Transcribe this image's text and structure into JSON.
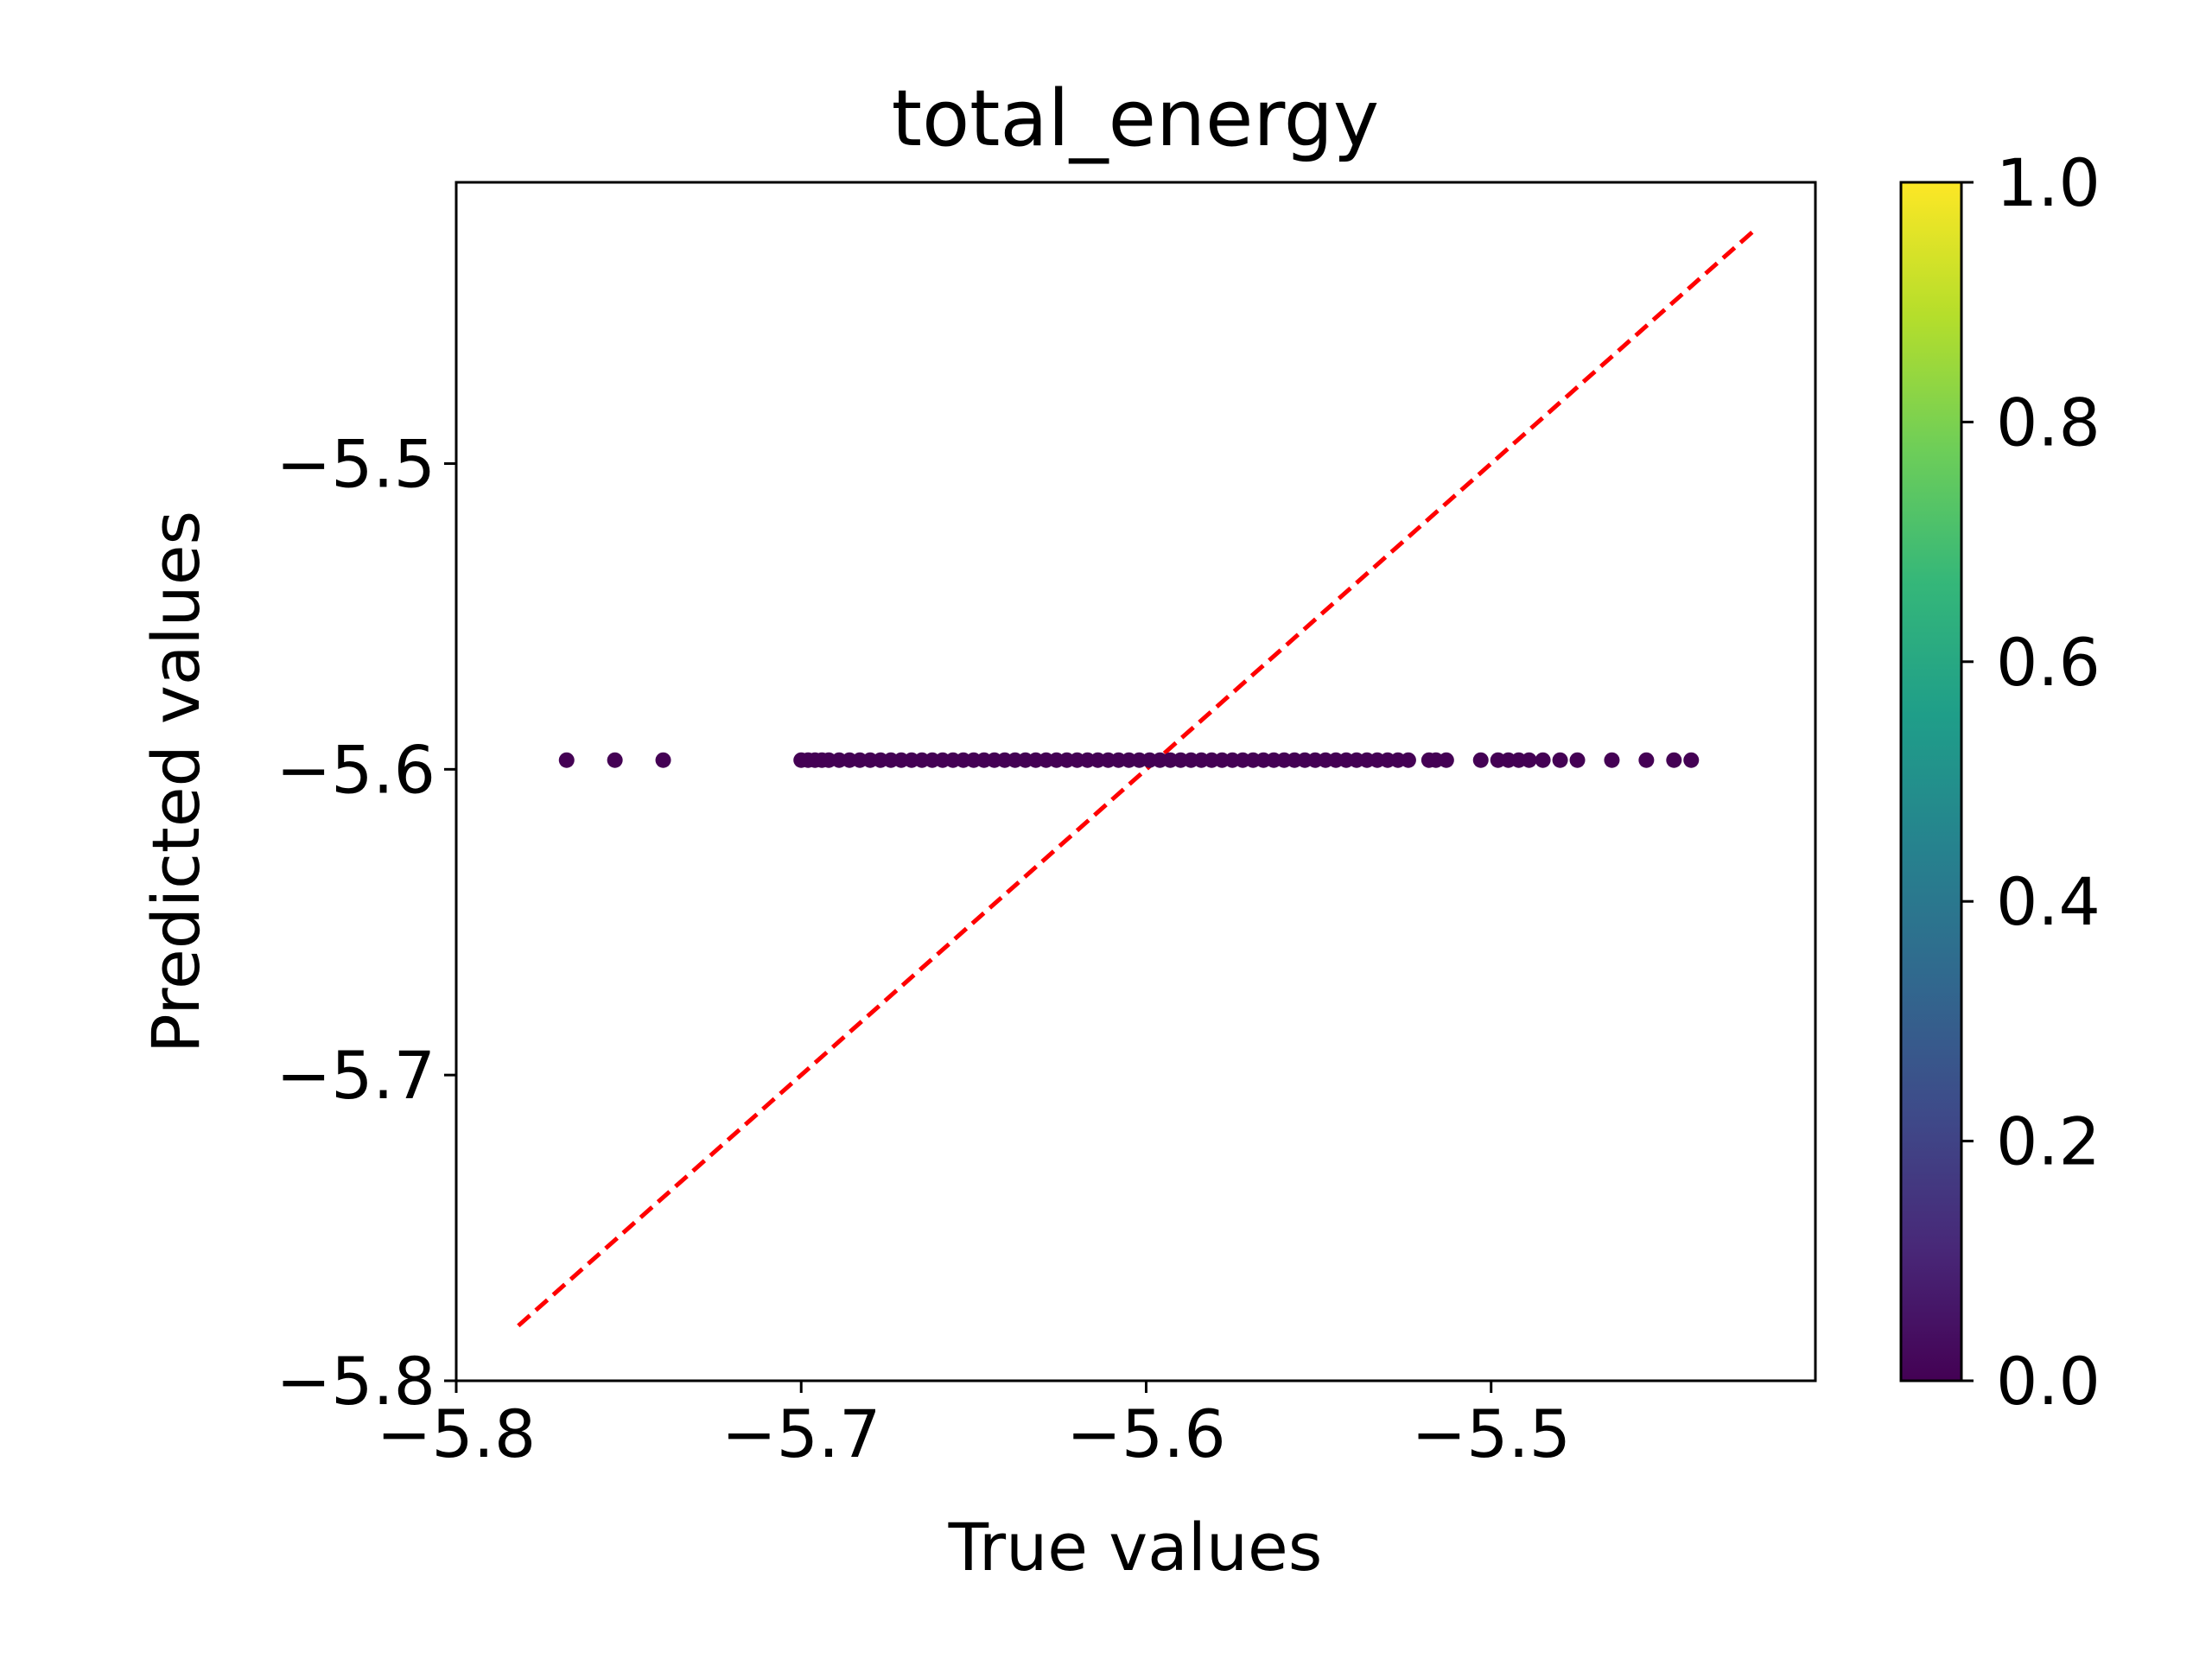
{
  "chart_data": {
    "type": "scatter",
    "title": "total_energy",
    "xlabel": "True values",
    "ylabel": "Predicted values",
    "xlim": [
      -5.8,
      -5.406
    ],
    "ylim": [
      -5.8,
      -5.408
    ],
    "xticks": [
      -5.8,
      -5.7,
      -5.6,
      -5.5
    ],
    "yticks": [
      -5.8,
      -5.7,
      -5.6,
      -5.5
    ],
    "xtick_labels": [
      "−5.8",
      "−5.7",
      "−5.6",
      "−5.5"
    ],
    "ytick_labels": [
      "−5.8",
      "−5.7",
      "−5.6",
      "−5.5"
    ],
    "grid": false,
    "reference_line": {
      "style": "dashed",
      "color": "#ff0000",
      "from": [
        -5.782,
        -5.782
      ],
      "to": [
        -5.424,
        -5.424
      ]
    },
    "point_color": "#440154",
    "predicted_value": -5.597,
    "x": [
      -5.768,
      -5.754,
      -5.74,
      -5.7,
      -5.698,
      -5.696,
      -5.694,
      -5.692,
      -5.689,
      -5.686,
      -5.683,
      -5.68,
      -5.677,
      -5.674,
      -5.671,
      -5.668,
      -5.665,
      -5.662,
      -5.659,
      -5.656,
      -5.653,
      -5.65,
      -5.647,
      -5.644,
      -5.641,
      -5.638,
      -5.635,
      -5.632,
      -5.629,
      -5.626,
      -5.623,
      -5.62,
      -5.617,
      -5.614,
      -5.611,
      -5.608,
      -5.605,
      -5.602,
      -5.599,
      -5.596,
      -5.593,
      -5.59,
      -5.587,
      -5.584,
      -5.581,
      -5.578,
      -5.575,
      -5.572,
      -5.569,
      -5.566,
      -5.563,
      -5.56,
      -5.557,
      -5.554,
      -5.551,
      -5.548,
      -5.545,
      -5.542,
      -5.539,
      -5.536,
      -5.533,
      -5.53,
      -5.527,
      -5.524,
      -5.518,
      -5.516,
      -5.513,
      -5.503,
      -5.498,
      -5.495,
      -5.492,
      -5.489,
      -5.485,
      -5.48,
      -5.475,
      -5.465,
      -5.455,
      -5.447,
      -5.442
    ],
    "y": [
      -5.597,
      -5.597,
      -5.597,
      -5.597,
      -5.597,
      -5.597,
      -5.597,
      -5.597,
      -5.597,
      -5.597,
      -5.597,
      -5.597,
      -5.597,
      -5.597,
      -5.597,
      -5.597,
      -5.597,
      -5.597,
      -5.597,
      -5.597,
      -5.597,
      -5.597,
      -5.597,
      -5.597,
      -5.597,
      -5.597,
      -5.597,
      -5.597,
      -5.597,
      -5.597,
      -5.597,
      -5.597,
      -5.597,
      -5.597,
      -5.597,
      -5.597,
      -5.597,
      -5.597,
      -5.597,
      -5.597,
      -5.597,
      -5.597,
      -5.597,
      -5.597,
      -5.597,
      -5.597,
      -5.597,
      -5.597,
      -5.597,
      -5.597,
      -5.597,
      -5.597,
      -5.597,
      -5.597,
      -5.597,
      -5.597,
      -5.597,
      -5.597,
      -5.597,
      -5.597,
      -5.597,
      -5.597,
      -5.597,
      -5.597,
      -5.597,
      -5.597,
      -5.597,
      -5.597,
      -5.597,
      -5.597,
      -5.597,
      -5.597,
      -5.597,
      -5.597,
      -5.597,
      -5.597,
      -5.597,
      -5.597,
      -5.597
    ],
    "colorbar": {
      "colormap": "viridis",
      "range": [
        0.0,
        1.0
      ],
      "ticks": [
        0.0,
        0.2,
        0.4,
        0.6,
        0.8,
        1.0
      ],
      "tick_labels": [
        "0.0",
        "0.2",
        "0.4",
        "0.6",
        "0.8",
        "1.0"
      ],
      "stops": [
        "#440154",
        "#482878",
        "#3e4a89",
        "#31688e",
        "#26828e",
        "#1f9e89",
        "#35b779",
        "#6ece58",
        "#b5de2b",
        "#fde725"
      ]
    }
  }
}
